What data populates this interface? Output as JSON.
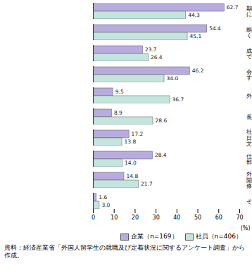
{
  "chart_data": {
    "type": "bar",
    "orientation": "horizontal",
    "categories": [
      "期待される役割や職務内容を明確に提示する",
      "能力に応じて責任のある職務につくことができるようにする",
      "成果に応じた給与を受けることができるようにする",
      "会社が将来のキャリアパスを明示する",
      "外国人社員を経営幹部に登用する",
      "長時間残業を見直す",
      "社内で英語が通じるようにする（日本人社員の英語能力向上、社内文書の英語化など）",
      "仕事や生活上の悩みについて人事部門などが定期的に相談にのる",
      "外国人社員向けに研修などの能力開発の機会を充実する（日本語研修を含む）",
      "その他"
    ],
    "series": [
      {
        "name": "企業（n=169）",
        "color": "#b8acdf",
        "values": [
          62.7,
          54.4,
          23.7,
          46.2,
          9.5,
          8.9,
          17.2,
          28.4,
          14.8,
          1.6
        ],
        "value_labels": [
          "62.7",
          "54.4",
          "23.7",
          "46.2",
          "9.5",
          "8.9",
          "17.2",
          "28.4",
          "14.8",
          "1.6"
        ]
      },
      {
        "name": "社員（n=406）",
        "color": "#c4e5de",
        "values": [
          44.3,
          45.1,
          26.4,
          34.0,
          36.7,
          28.6,
          13.8,
          14.0,
          21.7,
          3.0
        ],
        "value_labels": [
          "44.3",
          "45.1",
          "26.4",
          "34.0",
          "36.7",
          "28.6",
          "13.8",
          "14.0",
          "21.7",
          "3.0"
        ]
      }
    ],
    "x_label": "(%)",
    "xlim": [
      0,
      70
    ],
    "xticks": [
      0,
      10,
      20,
      30,
      40,
      50,
      60,
      70
    ],
    "data_labels": true,
    "grid": false,
    "legend": "bottom-right",
    "caption": "資料：経済産業省「外国人留学生の就職及び定着状況に関するアンケート調査」から作成。"
  }
}
